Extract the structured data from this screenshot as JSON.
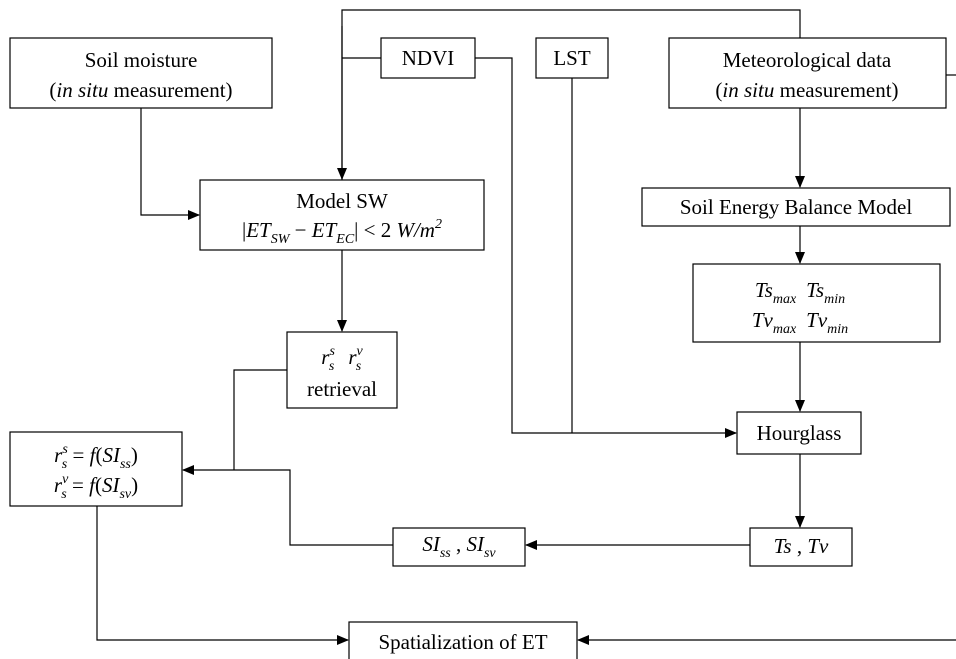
{
  "nodes": {
    "soil_moisture": {
      "line1": "Soil moisture",
      "line2": [
        "(",
        "in situ",
        " measurement)"
      ]
    },
    "ndvi": "NDVI",
    "lst": "LST",
    "meteorological": {
      "line1": "Meteorological data",
      "line2": [
        "(",
        "in situ",
        " measurement)"
      ]
    },
    "model_sw": {
      "title": "Model SW",
      "formula": [
        "|",
        "ET",
        "SW",
        " − ",
        "ET",
        "EC",
        "| < 2 ",
        "W/m",
        "2"
      ]
    },
    "seb": "Soil Energy Balance Model",
    "temps": [
      [
        "Ts",
        "max",
        "Ts",
        "min"
      ],
      [
        "Tv",
        "max",
        "Tv",
        "min"
      ]
    ],
    "retrieval": {
      "symbols": [
        {
          "base": "r",
          "sup": "s",
          "sub": "s"
        },
        {
          "base": "r",
          "sup": "v",
          "sub": "s"
        }
      ],
      "label": "retrieval"
    },
    "functions": [
      {
        "base": "r",
        "sup": "s",
        "sub": "s",
        "rest": " = ",
        "f": "f",
        "open": "(",
        "si": "SI",
        "si_sub": "ss",
        "close": ")"
      },
      {
        "base": "r",
        "sup": "v",
        "sub": "s",
        "rest": " = ",
        "f": "f",
        "open": "(",
        "si": "SI",
        "si_sub": "sv",
        "close": ")"
      }
    ],
    "hourglass": "Hourglass",
    "ts_tv": [
      "Ts",
      " , ",
      "Tv"
    ],
    "si": [
      "SI",
      "ss",
      " , ",
      "SI",
      "sv"
    ],
    "spatialization": "Spatialization of ET"
  }
}
